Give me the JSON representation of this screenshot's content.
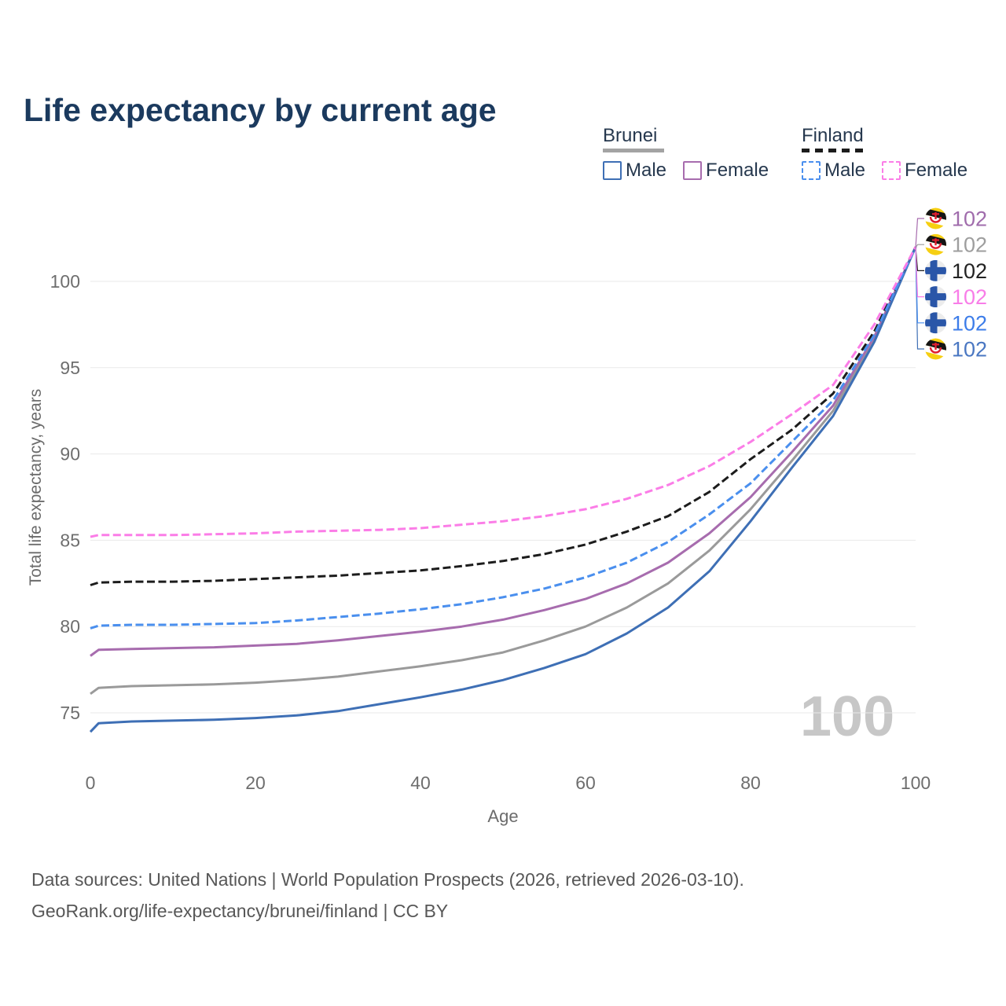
{
  "title": "Life expectancy by current age",
  "watermark": "100",
  "legend": {
    "groups": [
      {
        "country": "Brunei",
        "line_style": "solid",
        "underline_color": "#a3a3a3",
        "items": [
          {
            "label": "Male",
            "color": "#3e6fb5",
            "dashed": false
          },
          {
            "label": "Female",
            "color": "#a76cae",
            "dashed": false
          }
        ]
      },
      {
        "country": "Finland",
        "line_style": "dashed",
        "underline_color": "#1c1c1c",
        "items": [
          {
            "label": "Male",
            "color": "#4a8fee",
            "dashed": true
          },
          {
            "label": "Female",
            "color": "#fb7de7",
            "dashed": true
          }
        ]
      }
    ]
  },
  "footer": {
    "line1": "Data sources: United Nations | World Population Prospects (2026, retrieved 2026-03-10).",
    "line2": "GeoRank.org/life-expectancy/brunei/finland | CC BY"
  },
  "chart_data": {
    "type": "line",
    "title": "Life expectancy by current age",
    "xlabel": "Age",
    "ylabel": "Total life expectancy, years",
    "xlim": [
      0,
      100
    ],
    "ylim": [
      73,
      103
    ],
    "xticks": [
      0,
      20,
      40,
      60,
      80,
      100
    ],
    "yticks": [
      75,
      80,
      85,
      90,
      95,
      100
    ],
    "grid": "horizontal-only",
    "legend_position": "top-right",
    "ages": [
      0,
      1,
      5,
      10,
      15,
      20,
      25,
      30,
      35,
      40,
      45,
      50,
      55,
      60,
      65,
      70,
      75,
      80,
      85,
      90,
      95,
      100
    ],
    "series": [
      {
        "name": "Brunei Total",
        "country": "Brunei",
        "sex": "Total",
        "color": "#9a9a9a",
        "dashed": false,
        "flag": "brunei",
        "end_label": "102",
        "end_label_color": "#9e9e9e",
        "end_row": 1,
        "values": [
          76.1,
          76.45,
          76.55,
          76.6,
          76.65,
          76.75,
          76.9,
          77.1,
          77.4,
          77.7,
          78.05,
          78.5,
          79.2,
          80.0,
          81.1,
          82.5,
          84.4,
          86.8,
          89.6,
          92.5,
          96.7,
          102
        ]
      },
      {
        "name": "Brunei Female",
        "country": "Brunei",
        "sex": "Female",
        "color": "#a76cae",
        "dashed": false,
        "flag": "brunei",
        "end_label": "102",
        "end_label_color": "#a06cac",
        "end_row": 0,
        "values": [
          78.3,
          78.65,
          78.7,
          78.75,
          78.8,
          78.9,
          79.0,
          79.2,
          79.45,
          79.7,
          80.0,
          80.4,
          80.95,
          81.6,
          82.5,
          83.7,
          85.4,
          87.5,
          90.1,
          92.8,
          96.8,
          102
        ]
      },
      {
        "name": "Brunei Male",
        "country": "Brunei",
        "sex": "Male",
        "color": "#3e6fb5",
        "dashed": false,
        "flag": "brunei",
        "end_label": "102",
        "end_label_color": "#4a77c2",
        "end_row": 5,
        "values": [
          73.9,
          74.4,
          74.5,
          74.55,
          74.6,
          74.7,
          74.85,
          75.1,
          75.5,
          75.9,
          76.35,
          76.9,
          77.6,
          78.4,
          79.6,
          81.1,
          83.2,
          86.1,
          89.2,
          92.2,
          96.5,
          102
        ]
      },
      {
        "name": "Finland Total",
        "country": "Finland",
        "sex": "Total",
        "color": "#1c1c1c",
        "dashed": true,
        "flag": "finland",
        "end_label": "102",
        "end_label_color": "#222222",
        "end_row": 2,
        "values": [
          82.4,
          82.55,
          82.6,
          82.6,
          82.65,
          82.75,
          82.85,
          82.95,
          83.1,
          83.25,
          83.5,
          83.8,
          84.2,
          84.75,
          85.5,
          86.4,
          87.8,
          89.7,
          91.4,
          93.5,
          97.1,
          102
        ]
      },
      {
        "name": "Finland Male",
        "country": "Finland",
        "sex": "Male",
        "color": "#4a8fee",
        "dashed": true,
        "flag": "finland",
        "end_label": "102",
        "end_label_color": "#3d7de9",
        "end_row": 4,
        "values": [
          79.9,
          80.05,
          80.1,
          80.1,
          80.15,
          80.2,
          80.35,
          80.55,
          80.75,
          81.0,
          81.3,
          81.7,
          82.2,
          82.85,
          83.7,
          84.9,
          86.5,
          88.3,
          90.7,
          93.1,
          96.9,
          102
        ]
      },
      {
        "name": "Finland Female",
        "country": "Finland",
        "sex": "Female",
        "color": "#fb7de7",
        "dashed": true,
        "flag": "finland",
        "end_label": "102",
        "end_label_color": "#f87de8",
        "end_row": 3,
        "values": [
          85.2,
          85.3,
          85.3,
          85.3,
          85.35,
          85.4,
          85.5,
          85.55,
          85.6,
          85.7,
          85.9,
          86.1,
          86.4,
          86.8,
          87.4,
          88.2,
          89.3,
          90.7,
          92.3,
          94.0,
          97.5,
          102
        ]
      }
    ]
  }
}
